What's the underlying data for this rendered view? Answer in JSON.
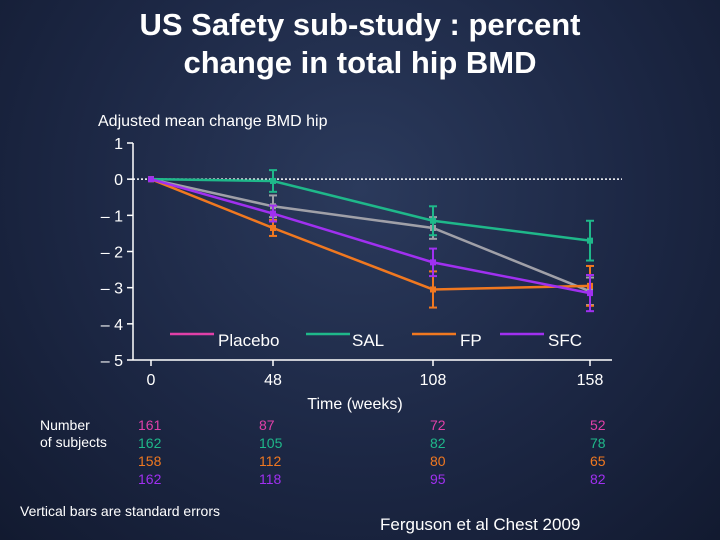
{
  "title_line1": "US Safety sub-study : percent",
  "title_line2": "change in total hip BMD",
  "footnote": "Vertical bars are standard errors",
  "citation": "Ferguson et al Chest 2009",
  "colors": {
    "background": "#1c2744",
    "text": "#ffffff",
    "placebo": "#a0a0a8",
    "sal": "#1fb88a",
    "fp": "#f07820",
    "sfc": "#a030f0",
    "placebo_legend": "#e040a8"
  },
  "chart_data": {
    "type": "line",
    "title": "US Safety sub-study : percent change in total hip BMD",
    "ylabel": "Adjusted mean change BMD hip",
    "xlabel": "Time (weeks)",
    "x": [
      0,
      48,
      108,
      158
    ],
    "x_tick_labels": [
      "0",
      "48",
      "108",
      "158"
    ],
    "y_tick_labels": [
      "1",
      "0",
      "– 1",
      "– 2",
      "– 3",
      "– 4",
      "– 5"
    ],
    "y_ticks": [
      1,
      0,
      -1,
      -2,
      -3,
      -4,
      -5
    ],
    "ylim": [
      -5,
      1
    ],
    "xlim": [
      0,
      158
    ],
    "reference_line": 0,
    "series": [
      {
        "name": "Placebo",
        "color_key": "placebo",
        "legend_color_key": "placebo_legend",
        "x": [
          0,
          48,
          108,
          158
        ],
        "values": [
          0,
          -0.75,
          -1.35,
          -3.1
        ],
        "se": [
          0,
          0.3,
          0.3,
          0.38
        ]
      },
      {
        "name": "SAL",
        "color_key": "sal",
        "x": [
          0,
          48,
          108,
          158
        ],
        "values": [
          0,
          -0.05,
          -1.15,
          -1.7
        ],
        "se": [
          0,
          0.3,
          0.4,
          0.55
        ]
      },
      {
        "name": "FP",
        "color_key": "fp",
        "x": [
          0,
          48,
          108,
          158
        ],
        "values": [
          0,
          -1.35,
          -3.05,
          -2.95
        ],
        "se": [
          0,
          0.22,
          0.5,
          0.55
        ]
      },
      {
        "name": "SFC",
        "color_key": "sfc",
        "x": [
          0,
          48,
          108,
          158
        ],
        "values": [
          0,
          -0.95,
          -2.3,
          -3.15
        ],
        "se": [
          0,
          0.22,
          0.38,
          0.5
        ]
      }
    ],
    "legend": [
      "Placebo",
      "SAL",
      "FP",
      "SFC"
    ],
    "subjects": {
      "label_line1": "Number",
      "label_line2": "of subjects",
      "columns": [
        {
          "x": 0,
          "counts": [
            "161",
            "162",
            "158",
            "162"
          ]
        },
        {
          "x": 48,
          "counts": [
            "87",
            "105",
            "112",
            "118"
          ]
        },
        {
          "x": 108,
          "counts": [
            "72",
            "82",
            "80",
            "95"
          ]
        },
        {
          "x": 158,
          "counts": [
            "52",
            "78",
            "65",
            "82"
          ]
        }
      ]
    }
  }
}
